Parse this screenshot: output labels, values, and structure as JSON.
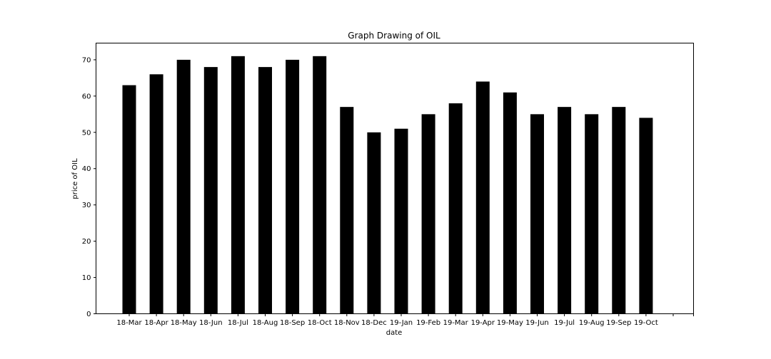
{
  "chart_data": {
    "type": "bar",
    "title": "Graph Drawing of OIL",
    "xlabel": "date",
    "ylabel": "price of OIL",
    "categories": [
      "18-Mar",
      "18-Apr",
      "18-May",
      "18-Jun",
      "18-Jul",
      "18-Aug",
      "18-Sep",
      "18-Oct",
      "18-Nov",
      "18-Dec",
      "19-Jan",
      "19-Feb",
      "19-Mar",
      "19-Apr",
      "19-May",
      "19-Jun",
      "19-Jul",
      "19-Aug",
      "19-Sep",
      "19-Oct"
    ],
    "values": [
      63,
      66,
      70,
      68,
      71,
      68,
      70,
      71,
      57,
      50,
      51,
      55,
      58,
      64,
      61,
      55,
      57,
      55,
      57,
      54
    ],
    "yticks": [
      0,
      10,
      20,
      30,
      40,
      50,
      60,
      70
    ],
    "ylim": [
      0,
      74.6
    ],
    "grid": false,
    "bar_color": "#000000"
  }
}
